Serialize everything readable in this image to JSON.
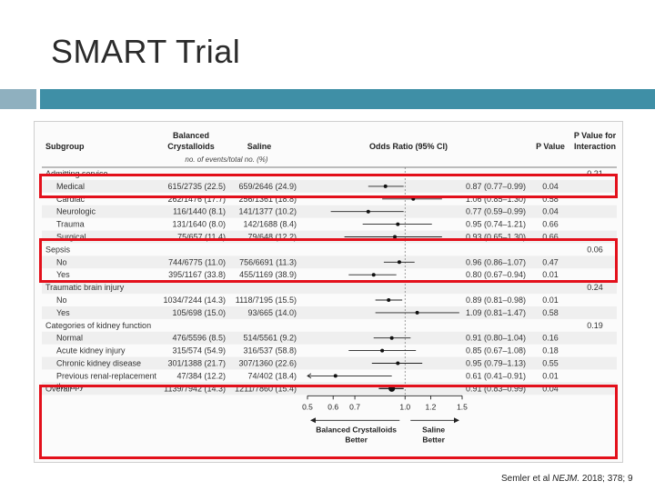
{
  "slide": {
    "title": "SMART Trial",
    "citation_prefix": "Semler et al ",
    "citation_journal": "NEJM.",
    "citation_suffix": " 2018; 378; 9"
  },
  "colors": {
    "accent_bar": "#3f8fa6",
    "accent_square": "#8fb0bf",
    "highlight": "#e3101b",
    "row_alt": "#efefef"
  },
  "table": {
    "headers": {
      "subgroup": "Subgroup",
      "balanced_line1": "Balanced",
      "balanced_line2": "Crystalloids",
      "saline": "Saline",
      "odds_ratio": "Odds Ratio (95% CI)",
      "p_value": "P Value",
      "p_interaction_line1": "P Value for",
      "p_interaction_line2": "Interaction",
      "events_note": "no. of events/total no. (%)"
    },
    "rows": [
      {
        "kind": "group",
        "label": "Admitting service",
        "p_interaction": "0.21"
      },
      {
        "kind": "item",
        "label": "Medical",
        "balanced": "615/2735 (22.5)",
        "saline": "659/2646 (24.9)",
        "or_text": "0.87 (0.77–0.99)",
        "p": "0.04",
        "or": 0.87,
        "lo": 0.77,
        "hi": 0.99
      },
      {
        "kind": "item",
        "label": "Cardiac",
        "balanced": "262/1476 (17.7)",
        "saline": "256/1361 (18.8)",
        "or_text": "1.06 (0.85–1.30)",
        "p": "0.58",
        "or": 1.06,
        "lo": 0.85,
        "hi": 1.3
      },
      {
        "kind": "item",
        "label": "Neurologic",
        "balanced": "116/1440 (8.1)",
        "saline": "141/1377 (10.2)",
        "or_text": "0.77 (0.59–0.99)",
        "p": "0.04",
        "or": 0.77,
        "lo": 0.59,
        "hi": 0.99
      },
      {
        "kind": "item",
        "label": "Trauma",
        "balanced": "131/1640 (8.0)",
        "saline": "142/1688 (8.4)",
        "or_text": "0.95 (0.74–1.21)",
        "p": "0.66",
        "or": 0.95,
        "lo": 0.74,
        "hi": 1.21
      },
      {
        "kind": "item",
        "label": "Surgical",
        "balanced": "75/657 (11.4)",
        "saline": "79/648 (12.2)",
        "or_text": "0.93 (0.65–1.30)",
        "p": "0.66",
        "or": 0.93,
        "lo": 0.65,
        "hi": 1.3
      },
      {
        "kind": "group",
        "label": "Sepsis",
        "p_interaction": "0.06"
      },
      {
        "kind": "item",
        "label": "No",
        "balanced": "744/6775 (11.0)",
        "saline": "756/6691 (11.3)",
        "or_text": "0.96 (0.86–1.07)",
        "p": "0.47",
        "or": 0.96,
        "lo": 0.86,
        "hi": 1.07
      },
      {
        "kind": "item",
        "label": "Yes",
        "balanced": "395/1167 (33.8)",
        "saline": "455/1169 (38.9)",
        "or_text": "0.80 (0.67–0.94)",
        "p": "0.01",
        "or": 0.8,
        "lo": 0.67,
        "hi": 0.94
      },
      {
        "kind": "group",
        "label": "Traumatic brain injury",
        "p_interaction": "0.24"
      },
      {
        "kind": "item",
        "label": "No",
        "balanced": "1034/7244 (14.3)",
        "saline": "1118/7195 (15.5)",
        "or_text": "0.89 (0.81–0.98)",
        "p": "0.01",
        "or": 0.89,
        "lo": 0.81,
        "hi": 0.98
      },
      {
        "kind": "item",
        "label": "Yes",
        "balanced": "105/698 (15.0)",
        "saline": "93/665 (14.0)",
        "or_text": "1.09 (0.81–1.47)",
        "p": "0.58",
        "or": 1.09,
        "lo": 0.81,
        "hi": 1.47
      },
      {
        "kind": "group",
        "label": "Categories of kidney function",
        "p_interaction": "0.19"
      },
      {
        "kind": "item",
        "label": "Normal",
        "balanced": "476/5596 (8.5)",
        "saline": "514/5561 (9.2)",
        "or_text": "0.91 (0.80–1.04)",
        "p": "0.16",
        "or": 0.91,
        "lo": 0.8,
        "hi": 1.04
      },
      {
        "kind": "item",
        "label": "Acute kidney injury",
        "balanced": "315/574 (54.9)",
        "saline": "316/537 (58.8)",
        "or_text": "0.85 (0.67–1.08)",
        "p": "0.18",
        "or": 0.85,
        "lo": 0.67,
        "hi": 1.08
      },
      {
        "kind": "item",
        "label": "Chronic kidney disease",
        "balanced": "301/1388 (21.7)",
        "saline": "307/1360 (22.6)",
        "or_text": "0.95 (0.79–1.13)",
        "p": "0.55",
        "or": 0.95,
        "lo": 0.79,
        "hi": 1.13
      },
      {
        "kind": "item",
        "label": "Previous renal-replacement",
        "label2": "therapy",
        "balanced": "47/384 (12.2)",
        "saline": "74/402 (18.4)",
        "or_text": "0.61 (0.41–0.91)",
        "p": "0.01",
        "or": 0.61,
        "lo": 0.41,
        "hi": 0.91
      },
      {
        "kind": "overall",
        "label": "Overall",
        "balanced": "1139/7942 (14.3)",
        "saline": "1211/7860 (15.4)",
        "or_text": "0.91 (0.83–0.99)",
        "p": "0.04",
        "or": 0.91,
        "lo": 0.83,
        "hi": 0.99
      }
    ]
  },
  "chart_data": {
    "type": "scatter",
    "title": "",
    "xlabel": "Odds Ratio (95% CI)",
    "ylabel": "",
    "x_scale": "log",
    "xlim": [
      0.5,
      1.5
    ],
    "x_ticks": [
      "0.5",
      "0.6",
      "0.7",
      "1.0",
      "1.2",
      "1.5"
    ],
    "reference_line": 1.0,
    "direction_left": [
      "Balanced Crystalloids",
      "Better"
    ],
    "direction_right": [
      "Saline",
      "Better"
    ],
    "series": [
      {
        "name": "",
        "points": [
          {
            "label": "Medical",
            "or": 0.87,
            "lo": 0.77,
            "hi": 0.99
          },
          {
            "label": "Cardiac",
            "or": 1.06,
            "lo": 0.85,
            "hi": 1.3
          },
          {
            "label": "Neurologic",
            "or": 0.77,
            "lo": 0.59,
            "hi": 0.99
          },
          {
            "label": "Trauma",
            "or": 0.95,
            "lo": 0.74,
            "hi": 1.21
          },
          {
            "label": "Surgical",
            "or": 0.93,
            "lo": 0.65,
            "hi": 1.3
          },
          {
            "label": "Sepsis: No",
            "or": 0.96,
            "lo": 0.86,
            "hi": 1.07
          },
          {
            "label": "Sepsis: Yes",
            "or": 0.8,
            "lo": 0.67,
            "hi": 0.94
          },
          {
            "label": "TBI: No",
            "or": 0.89,
            "lo": 0.81,
            "hi": 0.98
          },
          {
            "label": "TBI: Yes",
            "or": 1.09,
            "lo": 0.81,
            "hi": 1.47
          },
          {
            "label": "Normal",
            "or": 0.91,
            "lo": 0.8,
            "hi": 1.04
          },
          {
            "label": "Acute kidney injury",
            "or": 0.85,
            "lo": 0.67,
            "hi": 1.08
          },
          {
            "label": "Chronic kidney disease",
            "or": 0.95,
            "lo": 0.79,
            "hi": 1.13
          },
          {
            "label": "Previous renal-replacement therapy",
            "or": 0.61,
            "lo": 0.41,
            "hi": 0.91
          },
          {
            "label": "Overall",
            "or": 0.91,
            "lo": 0.83,
            "hi": 0.99
          }
        ]
      }
    ]
  }
}
